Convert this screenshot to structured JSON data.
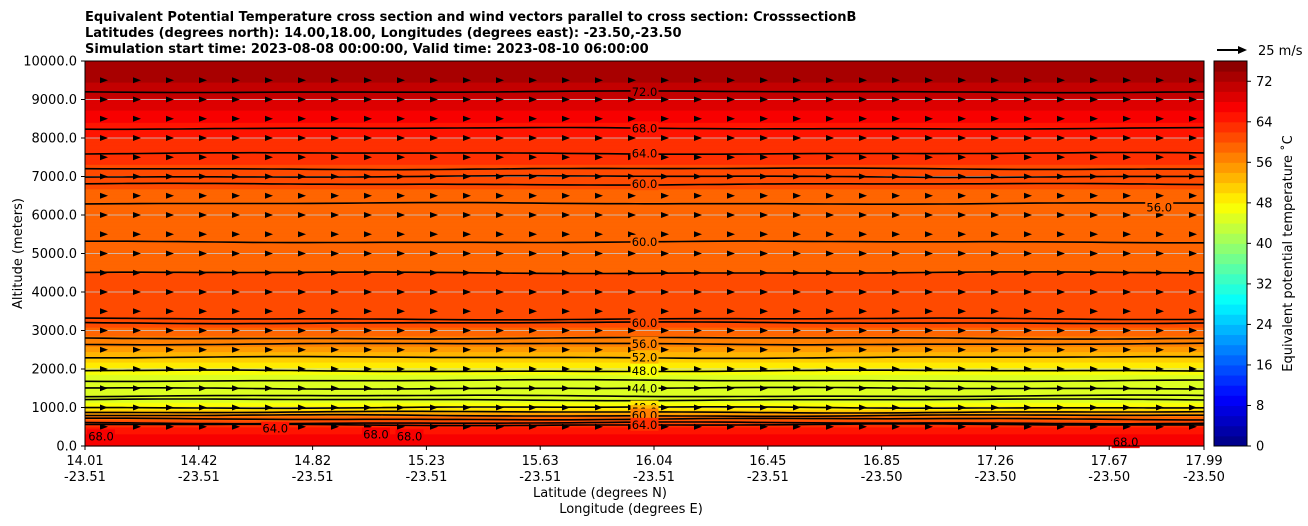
{
  "chart_data": {
    "type": "contour",
    "title_lines": [
      "Equivalent Potential Temperature cross section and wind vectors parallel to cross section: CrosssectionB",
      "Latitudes (degrees north): 14.00,18.00, Longitudes (degrees east): -23.50,-23.50",
      "Simulation start time: 2023-08-08 00:00:00, Valid time: 2023-08-10 06:00:00"
    ],
    "ylabel": "Altitude (meters)",
    "xlabel_lat": "Latitude (degrees N)",
    "xlabel_lon": "Longitude (degrees E)",
    "ylim": [
      0,
      10000
    ],
    "y_ticks": [
      "0.0",
      "1000.0",
      "2000.0",
      "3000.0",
      "4000.0",
      "5000.0",
      "6000.0",
      "7000.0",
      "8000.0",
      "9000.0",
      "10000.0"
    ],
    "x_ticks_lat": [
      "14.01",
      "14.42",
      "14.82",
      "15.23",
      "15.63",
      "16.04",
      "16.45",
      "16.85",
      "17.26",
      "17.67",
      "17.99"
    ],
    "x_ticks_lon": [
      "-23.51",
      "-23.51",
      "-23.51",
      "-23.51",
      "-23.51",
      "-23.51",
      "-23.51",
      "-23.50",
      "-23.50",
      "-23.50",
      "-23.50"
    ],
    "colorbar": {
      "label": "Equivalent potential temperature ˚C",
      "range": [
        0,
        76
      ],
      "ticks": [
        "0",
        "8",
        "16",
        "24",
        "32",
        "40",
        "48",
        "56",
        "64",
        "72"
      ],
      "step": 2
    },
    "quiver_key": "25 m/s",
    "theta_e_profile": [
      {
        "altitude": 0,
        "value": 67
      },
      {
        "altitude": 300,
        "value": 66
      },
      {
        "altitude": 500,
        "value": 64
      },
      {
        "altitude": 700,
        "value": 60
      },
      {
        "altitude": 900,
        "value": 52
      },
      {
        "altitude": 1200,
        "value": 44
      },
      {
        "altitude": 1600,
        "value": 44
      },
      {
        "altitude": 2000,
        "value": 47
      },
      {
        "altitude": 2300,
        "value": 52
      },
      {
        "altitude": 2600,
        "value": 56
      },
      {
        "altitude": 3100,
        "value": 60
      },
      {
        "altitude": 4000,
        "value": 61
      },
      {
        "altitude": 5000,
        "value": 59
      },
      {
        "altitude": 6000,
        "value": 58
      },
      {
        "altitude": 7000,
        "value": 61
      },
      {
        "altitude": 8000,
        "value": 64
      },
      {
        "altitude": 8600,
        "value": 67
      },
      {
        "altitude": 9200,
        "value": 71
      },
      {
        "altitude": 10000,
        "value": 74
      }
    ],
    "contour_labels": [
      {
        "text": "72.0",
        "lat_frac": 0.5,
        "altitude": 9200
      },
      {
        "text": "68.0",
        "lat_frac": 0.5,
        "altitude": 8250
      },
      {
        "text": "64.0",
        "lat_frac": 0.5,
        "altitude": 7600
      },
      {
        "text": "60.0",
        "lat_frac": 0.5,
        "altitude": 6800
      },
      {
        "text": "60.0",
        "lat_frac": 0.5,
        "altitude": 5300
      },
      {
        "text": "60.0",
        "lat_frac": 0.5,
        "altitude": 3200
      },
      {
        "text": "56.0",
        "lat_frac": 0.5,
        "altitude": 2650
      },
      {
        "text": "52.0",
        "lat_frac": 0.5,
        "altitude": 2300
      },
      {
        "text": "48.0",
        "lat_frac": 0.5,
        "altitude": 1950
      },
      {
        "text": "44.0",
        "lat_frac": 0.5,
        "altitude": 1500
      },
      {
        "text": "48.0",
        "lat_frac": 0.5,
        "altitude": 1000
      },
      {
        "text": "56.0",
        "lat_frac": 0.5,
        "altitude": 880
      },
      {
        "text": "60.0",
        "lat_frac": 0.5,
        "altitude": 790
      },
      {
        "text": "64.0",
        "lat_frac": 0.5,
        "altitude": 550
      },
      {
        "text": "64.0",
        "lat_frac": 0.17,
        "altitude": 450
      },
      {
        "text": "68.0",
        "lat_frac": 0.26,
        "altitude": 300
      },
      {
        "text": "68.0",
        "lat_frac": 0.29,
        "altitude": 250
      },
      {
        "text": "68.0",
        "lat_frac": 0.93,
        "altitude": 100
      },
      {
        "text": "68.0",
        "lat_frac": 0.0,
        "altitude": 250
      },
      {
        "text": "56.0",
        "lat_frac": 0.96,
        "altitude": 6200
      }
    ]
  }
}
